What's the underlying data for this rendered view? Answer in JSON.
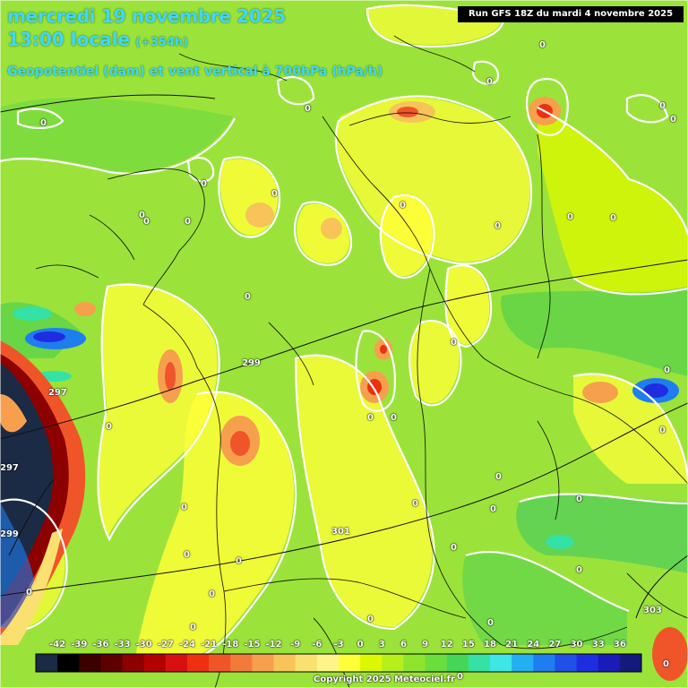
{
  "header": {
    "date_line": "mercredi 19 novembre 2025",
    "time_line": "13:00 locale",
    "lead_time": "(+354h)",
    "subtitle": "Geopotentiel (dam) et vent vertical à 700hPa (hPa/h)",
    "run_info": "Run GFS 18Z du mardi 4 novembre 2025"
  },
  "legend": {
    "ticks": [
      "-42",
      "-39",
      "-36",
      "-33",
      "-30",
      "-27",
      "-24",
      "-21",
      "-18",
      "-15",
      "-12",
      "-9",
      "-6",
      "-3",
      "0",
      "3",
      "6",
      "9",
      "12",
      "15",
      "18",
      "21",
      "24",
      "27",
      "30",
      "33",
      "36"
    ],
    "colors": [
      "#1b2a45",
      "#000000",
      "#3b0000",
      "#5c0000",
      "#8c0000",
      "#b30000",
      "#d81010",
      "#ee3010",
      "#f0552a",
      "#f47a3c",
      "#f6a04e",
      "#f8c45a",
      "#fae070",
      "#fdf58a",
      "#ffff38",
      "#dcf800",
      "#b6ef1a",
      "#8fe42c",
      "#6ade3c",
      "#46d656",
      "#34e2a6",
      "#3ee6e6",
      "#22b0f2",
      "#1e7ef0",
      "#2050e8",
      "#1f2de0",
      "#1a1bb8",
      "#141a7a"
    ]
  },
  "contours": {
    "vv_zero": [
      "0",
      "0",
      "0",
      "0",
      "0",
      "0",
      "0",
      "0",
      "0",
      "0",
      "0",
      "0",
      "0",
      "0",
      "0",
      "0",
      "0",
      "0",
      "0",
      "0",
      "0",
      "0",
      "0",
      "0",
      "0",
      "0",
      "0",
      "0",
      "0",
      "0",
      "0",
      "0",
      "0",
      "0",
      "0",
      "0",
      "0",
      "0"
    ],
    "geopotential": [
      "299",
      "297",
      "297",
      "299",
      "301",
      "303"
    ]
  },
  "footer": {
    "copyright": "Copyright 2025 Meteociel.fr"
  },
  "icons": [
    "legend-colorbar",
    "weather-map-field"
  ]
}
